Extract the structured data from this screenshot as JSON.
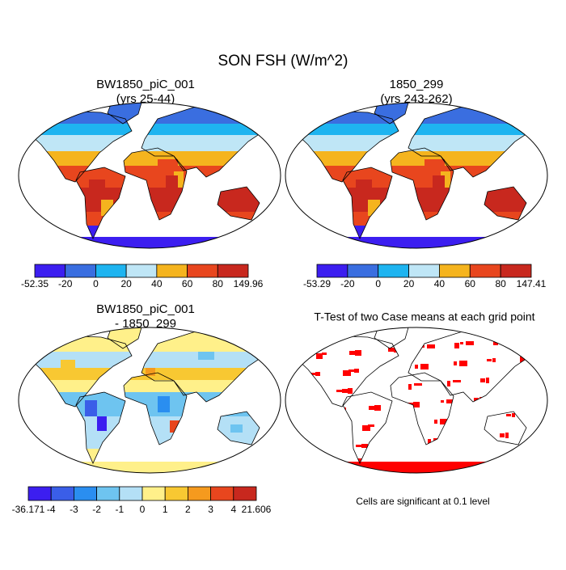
{
  "title": "SON FSH (W/m^2)",
  "panels": [
    {
      "title": "BW1850_piC_001",
      "subtitle": "(yrs 25-44)",
      "colorbar": {
        "colors": [
          "#3c1ef0",
          "#3a6ee0",
          "#1eb4f0",
          "#bfe6f6",
          "#f5b41e",
          "#e8461e",
          "#c8281e"
        ],
        "labels": [
          "-52.35",
          "-20",
          "0",
          "20",
          "40",
          "60",
          "80",
          "149.96"
        ]
      }
    },
    {
      "title": "1850_299",
      "subtitle": "(yrs 243-262)",
      "colorbar": {
        "colors": [
          "#3c1ef0",
          "#3a6ee0",
          "#1eb4f0",
          "#bfe6f6",
          "#f5b41e",
          "#e8461e",
          "#c8281e"
        ],
        "labels": [
          "-53.29",
          "-20",
          "0",
          "20",
          "40",
          "60",
          "80",
          "147.41"
        ]
      }
    },
    {
      "title": "BW1850_piC_001",
      "subtitle": "- 1850_299",
      "colorbar": {
        "colors": [
          "#3c1ef0",
          "#3a5ee8",
          "#2a8ef0",
          "#6ec4f0",
          "#b4e0f6",
          "#fff08a",
          "#f8c832",
          "#f59a1e",
          "#e8461e",
          "#c8281e"
        ],
        "labels": [
          "-36.171",
          "-4",
          "-3",
          "-2",
          "-1",
          "0",
          "1",
          "2",
          "3",
          "4",
          "21.606"
        ]
      }
    },
    {
      "title": "T-Test of two Case means at each grid point",
      "note": "Cells are significant at 0.1 level",
      "color": "#ff0000"
    }
  ]
}
